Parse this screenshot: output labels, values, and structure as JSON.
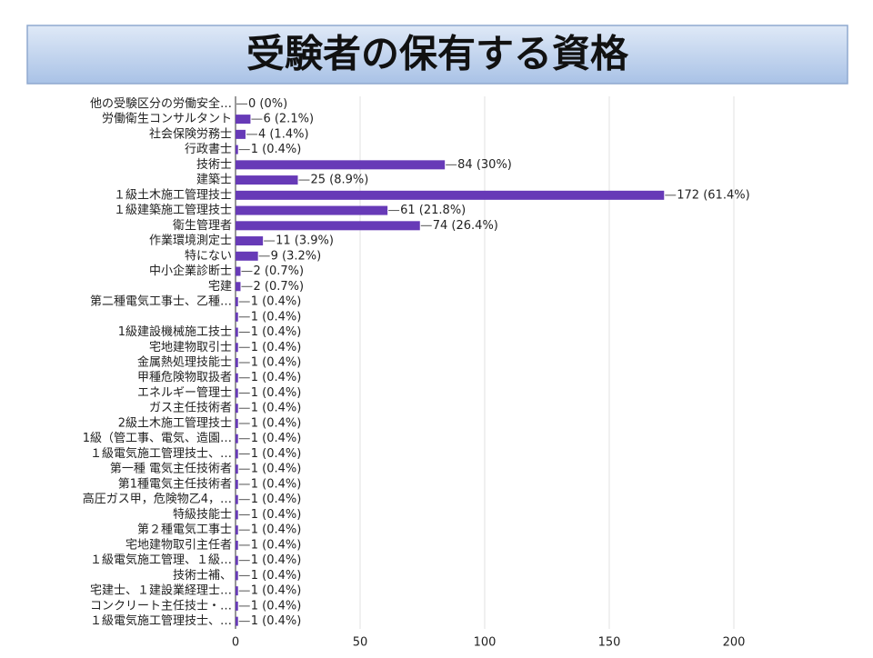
{
  "chart_data": {
    "type": "bar",
    "orientation": "horizontal",
    "title": "受験者の保有する資格",
    "categories": [
      "他の受験区分の労働安全…",
      "労働衛生コンサルタント",
      "社会保険労務士",
      "行政書士",
      "技術士",
      "建築士",
      "１級土木施工管理技士",
      "１級建築施工管理技士",
      "衛生管理者",
      "作業環境測定士",
      "特にない",
      "中小企業診断士",
      "宅建",
      "第二種電気工事士、乙種…",
      null,
      "1級建設機械施工技士",
      "宅地建物取引士",
      "金属熱処理技能士",
      "甲種危険物取扱者",
      "エネルギー管理士",
      "ガス主任技術者",
      "2級土木施工管理技士",
      "1級（管工事、電気、造園…",
      "１級電気施工管理技士、…",
      "第一種 電気主任技術者",
      "第1種電気主任技術者",
      "高圧ガス甲，危険物乙4，…",
      "特級技能士",
      "第２種電気工事士",
      "宅地建物取引主任者",
      "１級電気施工管理、１級…",
      "技術士補、",
      "宅建士、１建設業経理士…",
      "コンクリート主任技士・…",
      "１級電気施工管理技士、…"
    ],
    "values": [
      0,
      6,
      4,
      1,
      84,
      25,
      172,
      61,
      74,
      11,
      9,
      2,
      2,
      1,
      1,
      1,
      1,
      1,
      1,
      1,
      1,
      1,
      1,
      1,
      1,
      1,
      1,
      1,
      1,
      1,
      1,
      1,
      1,
      1,
      1
    ],
    "value_labels": [
      "0 (0%)",
      "6 (2.1%)",
      "4 (1.4%)",
      "1 (0.4%)",
      "84 (30%)",
      "25 (8.9%)",
      "172 (61.4%)",
      "61 (21.8%)",
      "74 (26.4%)",
      "11 (3.9%)",
      "9 (3.2%)",
      "2 (0.7%)",
      "2 (0.7%)",
      "1 (0.4%)",
      "1 (0.4%)",
      "1 (0.4%)",
      "1 (0.4%)",
      "1 (0.4%)",
      "1 (0.4%)",
      "1 (0.4%)",
      "1 (0.4%)",
      "1 (0.4%)",
      "1 (0.4%)",
      "1 (0.4%)",
      "1 (0.4%)",
      "1 (0.4%)",
      "1 (0.4%)",
      "1 (0.4%)",
      "1 (0.4%)",
      "1 (0.4%)",
      "1 (0.4%)",
      "1 (0.4%)",
      "1 (0.4%)",
      "1 (0.4%)",
      "1 (0.4%)"
    ],
    "color": "#673ab7",
    "xlim": [
      0,
      200
    ],
    "xticks": [
      0,
      50,
      100,
      150,
      200
    ],
    "grid": true
  }
}
